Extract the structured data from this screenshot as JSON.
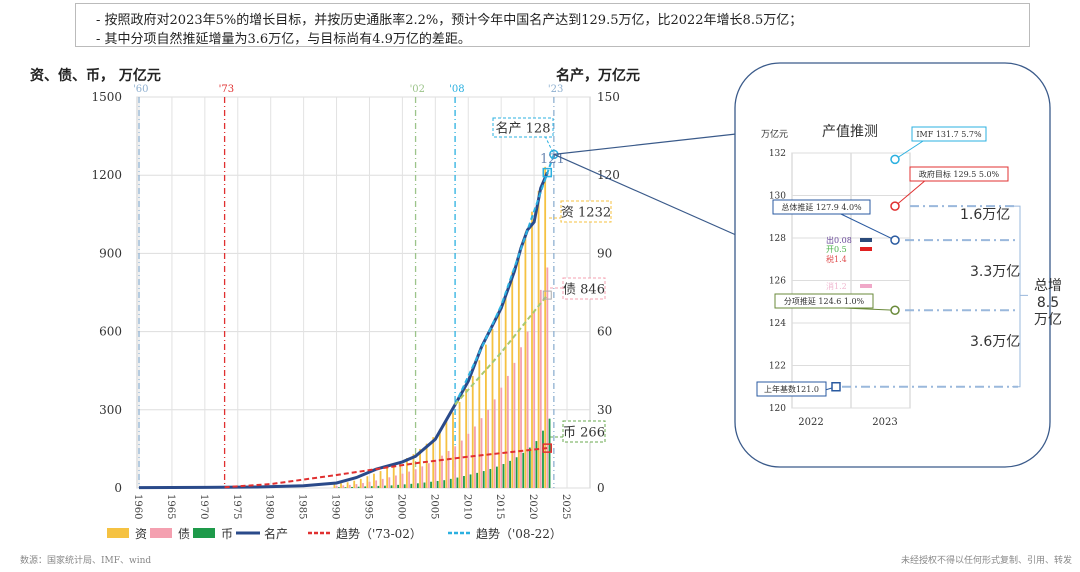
{
  "notes": [
    "-   按照政府对2023年5%的增长目标，并按历史通胀率2.2%，预计今年中国名产达到129.5万亿，比2022年增长8.5万亿；",
    "-   其中分项自然推延增量为3.6万亿，与目标尚有4.9万亿的差距。"
  ],
  "source": "数源：国家统计局、IMF、wind",
  "disclaimer": "未经授权不得以任何形式复制、引用、转发",
  "chart_data": [
    {
      "type": "bar+line",
      "ylabel_left": "资、债、币， 万亿元",
      "ylabel_right": "名产，万亿元",
      "ylim_left": [
        0,
        1500
      ],
      "ylim_right": [
        0,
        150
      ],
      "yticks_left": [
        "0",
        "300",
        "600",
        "900",
        "1200",
        "1500"
      ],
      "yticks_right": [
        "0",
        "30",
        "60",
        "90",
        "120",
        "150"
      ],
      "xticks": [
        "1960",
        "1965",
        "1970",
        "1975",
        "1980",
        "1985",
        "1990",
        "1995",
        "2000",
        "2005",
        "2010",
        "2015",
        "2020",
        "2025"
      ],
      "xlim": [
        1960,
        2025
      ],
      "grid": true,
      "legend_position": "bottom",
      "vlines": [
        {
          "year": 1960,
          "label": "'60",
          "color": "#8fb0d0"
        },
        {
          "year": 1973,
          "label": "'73",
          "color": "#e03030"
        },
        {
          "year": 2002,
          "label": "'02",
          "color": "#9cc48a"
        },
        {
          "year": 2008,
          "label": "'08",
          "color": "#2bb0e0"
        },
        {
          "year": 2023,
          "label": "'23",
          "color": "#8fb0d0"
        }
      ],
      "bar_years": [
        1990,
        1991,
        1992,
        1993,
        1994,
        1995,
        1996,
        1997,
        1998,
        1999,
        2000,
        2001,
        2002,
        2003,
        2004,
        2005,
        2006,
        2007,
        2008,
        2009,
        2010,
        2011,
        2012,
        2013,
        2014,
        2015,
        2016,
        2017,
        2018,
        2019,
        2020,
        2021,
        2022
      ],
      "bars": [
        {
          "name": "资",
          "color": "#f5c242",
          "values": [
            15,
            18,
            22,
            28,
            35,
            45,
            55,
            65,
            75,
            88,
            100,
            115,
            130,
            150,
            170,
            195,
            225,
            260,
            290,
            330,
            380,
            430,
            490,
            550,
            610,
            680,
            750,
            830,
            900,
            980,
            1060,
            1140,
            1232
          ]
        },
        {
          "name": "债",
          "color": "#f4a0b0",
          "values": [
            8,
            10,
            12,
            15,
            19,
            24,
            29,
            35,
            41,
            48,
            55,
            63,
            72,
            83,
            95,
            108,
            124,
            142,
            160,
            182,
            208,
            236,
            268,
            300,
            340,
            385,
            430,
            480,
            540,
            600,
            680,
            760,
            846
          ]
        },
        {
          "name": "币",
          "color": "#1e9a4a",
          "values": [
            3,
            3,
            4,
            5,
            6,
            7,
            8,
            9,
            10,
            12,
            14,
            16,
            18,
            21,
            24,
            27,
            30,
            35,
            40,
            46,
            52,
            58,
            65,
            73,
            82,
            92,
            104,
            118,
            135,
            155,
            180,
            220,
            266
          ]
        }
      ],
      "lines": [
        {
          "name": "名产",
          "axis": "right",
          "color": "#2a4a8a",
          "style": "solid",
          "points": [
            [
              1960,
              0.15
            ],
            [
              1970,
              0.23
            ],
            [
              1978,
              0.37
            ],
            [
              1985,
              0.9
            ],
            [
              1990,
              1.9
            ],
            [
              1993,
              4
            ],
            [
              1996,
              7.2
            ],
            [
              2000,
              10
            ],
            [
              2002,
              12.2
            ],
            [
              2005,
              18.7
            ],
            [
              2008,
              32
            ],
            [
              2010,
              41
            ],
            [
              2012,
              54
            ],
            [
              2015,
              69
            ],
            [
              2017,
              83
            ],
            [
              2018,
              92
            ],
            [
              2019,
              99
            ],
            [
              2020,
              102
            ],
            [
              2021,
              115
            ],
            [
              2022,
              121
            ]
          ]
        },
        {
          "name": "趋势（'73-02）",
          "axis": "right",
          "color": "#e03030",
          "style": "dashed",
          "points": [
            [
              1973,
              0.3
            ],
            [
              1980,
              1.5
            ],
            [
              1990,
              5
            ],
            [
              2002,
              9.5
            ],
            [
              2010,
              12
            ],
            [
              2022,
              15.3
            ]
          ]
        },
        {
          "name": "趋势（'08-22）",
          "axis": "right",
          "color": "#2bb0e0",
          "style": "dashed",
          "points": [
            [
              2008,
              32
            ],
            [
              2015,
              70
            ],
            [
              2023,
              128
            ]
          ]
        },
        {
          "name": "",
          "axis": "right",
          "color": "#a8c870",
          "style": "dashed",
          "points": [
            [
              2008,
              32
            ],
            [
              2015,
              52
            ],
            [
              2022,
              74
            ]
          ]
        }
      ],
      "annotations": [
        {
          "text": "名产 128",
          "color": "#2bb0e0"
        },
        {
          "text": "121",
          "color": "#6a86b0"
        },
        {
          "text": "资 1232",
          "color": "#f5c242"
        },
        {
          "text": "债 846",
          "color": "#f4a0b0"
        },
        {
          "text": "币 266",
          "color": "#6aa84f"
        }
      ]
    },
    {
      "type": "scatter",
      "title": "产值推测",
      "ylabel": "万亿元",
      "ylim": [
        120,
        132
      ],
      "yticks": [
        "120",
        "122",
        "124",
        "126",
        "128",
        "130",
        "132"
      ],
      "categories": [
        "2022",
        "2023"
      ],
      "points": [
        {
          "label": "IMF 131.7  5.7%",
          "value": 131.7,
          "color": "#2bb0e0"
        },
        {
          "label": "政府目标 129.5  5.0%",
          "value": 129.5,
          "color": "#e03030"
        },
        {
          "label": "总体推延 127.9  4.0%",
          "value": 127.9,
          "color": "#2a5aa0"
        },
        {
          "label": "分项推延 124.6  1.0%",
          "value": 124.6,
          "color": "#6a8a3a"
        },
        {
          "label": "上年基数121.0",
          "value": 121.0,
          "color": "#2a5aa0"
        }
      ],
      "components": [
        {
          "label": "出0.08",
          "color": "#6a4a9a",
          "bar": "#2a4a7a"
        },
        {
          "label": "开0.5",
          "color": "#4ab04a",
          "bar": "#e02020"
        },
        {
          "label": "税1.4",
          "color": "#e05050",
          "bar": ""
        },
        {
          "label": "消1.2",
          "color": "#f0b8d0",
          "bar": "#f0a8c8"
        }
      ],
      "gaps": [
        "1.6万亿",
        "3.3万亿",
        "3.6万亿"
      ],
      "total": [
        "总增",
        "8.5",
        "万亿"
      ]
    }
  ],
  "legend": [
    {
      "label": "资",
      "color": "#f5c242",
      "kind": "box"
    },
    {
      "label": "债",
      "color": "#f4a0b0",
      "kind": "box"
    },
    {
      "label": "币",
      "color": "#1e9a4a",
      "kind": "box"
    },
    {
      "label": "名产",
      "color": "#2a4a8a",
      "kind": "line"
    },
    {
      "label": "趋势（'73-02）",
      "color": "#e03030",
      "kind": "dash"
    },
    {
      "label": "趋势（'08-22）",
      "color": "#2bb0e0",
      "kind": "dash"
    }
  ]
}
